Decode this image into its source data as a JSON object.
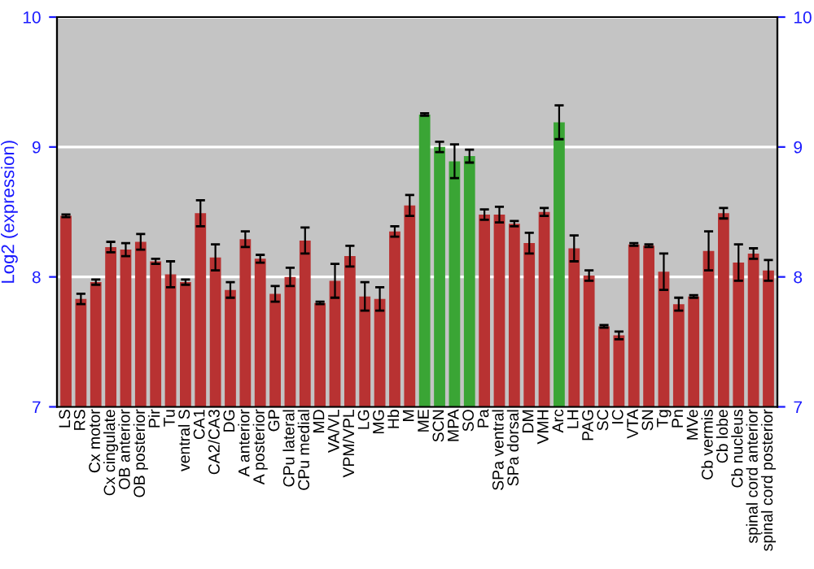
{
  "chart_data": {
    "type": "bar",
    "ylabel": "Log2 (expression)",
    "categories": [
      "LS",
      "RS",
      "Cx motor",
      "Cx cingulate",
      "OB anterior",
      "OB posterior",
      "Pir",
      "Tu",
      "ventral S",
      "CA1",
      "CA2/CA3",
      "DG",
      "A anterior",
      "A posterior",
      "GP",
      "CPu lateral",
      "CPu medial",
      "MD",
      "VA/VL",
      "VPM/VPL",
      "LG",
      "MG",
      "Hb",
      "M",
      "ME",
      "SCN",
      "MPA",
      "SO",
      "Pa",
      "SPa ventral",
      "SPa dorsal",
      "DM",
      "VMH",
      "Arc",
      "LH",
      "PAG",
      "SC",
      "IC",
      "VTA",
      "SN",
      "Tg",
      "Pn",
      "MVe",
      "Cb vermis",
      "Cb lobe",
      "Cb nucleus",
      "spinal cord anterior",
      "spinal cord posterior"
    ],
    "values": [
      8.47,
      7.83,
      7.96,
      8.23,
      8.21,
      8.27,
      8.12,
      8.02,
      7.96,
      8.49,
      8.15,
      7.9,
      8.29,
      8.14,
      7.87,
      8.0,
      8.28,
      7.8,
      7.97,
      8.16,
      7.85,
      7.83,
      8.35,
      8.55,
      9.25,
      9.0,
      8.89,
      8.93,
      8.48,
      8.48,
      8.41,
      8.26,
      8.5,
      9.19,
      8.22,
      8.01,
      7.62,
      7.55,
      8.25,
      8.24,
      8.04,
      7.79,
      7.85,
      8.2,
      8.49,
      8.11,
      8.18,
      8.05
    ],
    "errors": [
      0.01,
      0.04,
      0.02,
      0.04,
      0.05,
      0.06,
      0.02,
      0.1,
      0.02,
      0.1,
      0.1,
      0.06,
      0.06,
      0.03,
      0.06,
      0.07,
      0.1,
      0.01,
      0.13,
      0.08,
      0.11,
      0.09,
      0.04,
      0.08,
      0.01,
      0.04,
      0.13,
      0.05,
      0.04,
      0.06,
      0.02,
      0.08,
      0.03,
      0.13,
      0.1,
      0.04,
      0.01,
      0.03,
      0.01,
      0.01,
      0.14,
      0.05,
      0.01,
      0.15,
      0.04,
      0.14,
      0.04,
      0.08
    ],
    "colors": [
      "#b83232",
      "#b83232",
      "#b83232",
      "#b83232",
      "#b83232",
      "#b83232",
      "#b83232",
      "#b83232",
      "#b83232",
      "#b83232",
      "#b83232",
      "#b83232",
      "#b83232",
      "#b83232",
      "#b83232",
      "#b83232",
      "#b83232",
      "#b83232",
      "#b83232",
      "#b83232",
      "#b83232",
      "#b83232",
      "#b83232",
      "#b83232",
      "#3aa535",
      "#3aa535",
      "#3aa535",
      "#3aa535",
      "#b83232",
      "#b83232",
      "#b83232",
      "#b83232",
      "#b83232",
      "#3aa535",
      "#b83232",
      "#b83232",
      "#b83232",
      "#b83232",
      "#b83232",
      "#b83232",
      "#b83232",
      "#b83232",
      "#b83232",
      "#b83232",
      "#b83232",
      "#b83232",
      "#b83232",
      "#b83232"
    ],
    "ylim": [
      7,
      10
    ],
    "yticks": [
      7,
      8,
      9,
      10
    ],
    "y2lim": [
      7,
      10
    ],
    "y2ticks": [
      7,
      8,
      9,
      10
    ],
    "grid": "y"
  }
}
